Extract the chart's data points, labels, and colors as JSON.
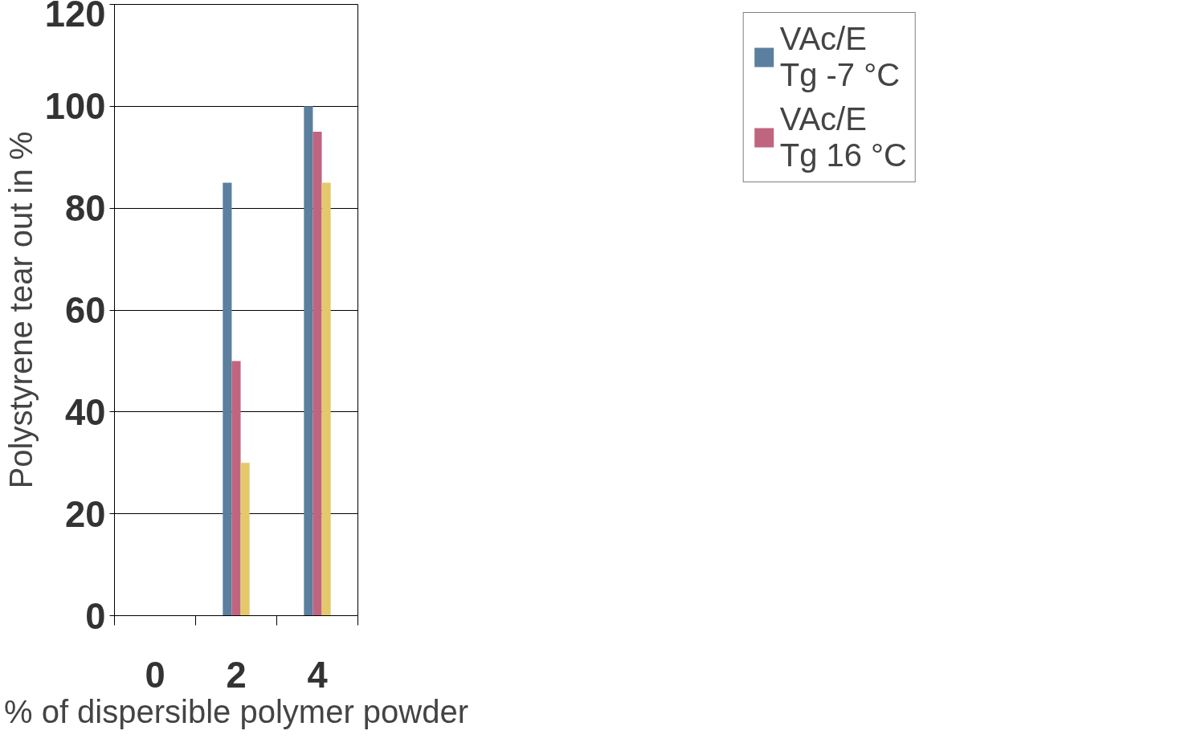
{
  "chart_data": {
    "type": "bar",
    "xlabel": "% of dispersible polymer powder",
    "ylabel": "Polystyrene tear out in %",
    "categories": [
      "0",
      "2",
      "4"
    ],
    "series": [
      {
        "name": "VAc/E\nTg -7 °C",
        "color": "#5b7f9e",
        "values": [
          0,
          85,
          100
        ]
      },
      {
        "name": "VAc/E\nTg 16 °C",
        "color": "#c0657f",
        "values": [
          0,
          50,
          95
        ]
      },
      {
        "color": "#e3c96b",
        "values": [
          0,
          30,
          85
        ]
      }
    ],
    "ylim": [
      0,
      120
    ],
    "yticks": [
      0,
      20,
      40,
      60,
      80,
      100,
      120
    ],
    "grid": "y",
    "legend": "right"
  }
}
